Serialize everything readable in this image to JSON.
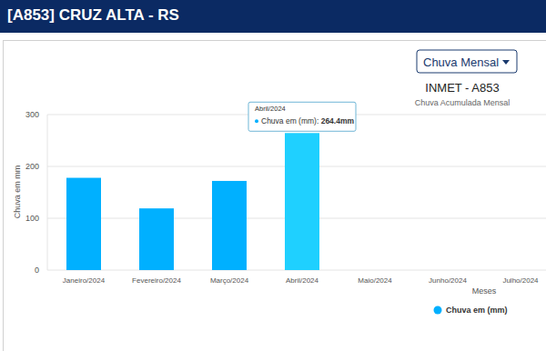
{
  "header": {
    "title": "[A853] CRUZ ALTA - RS"
  },
  "dropdown": {
    "label": "Chuva Mensal"
  },
  "chart_data": {
    "type": "bar",
    "title": "INMET - A853",
    "subtitle": "Chuva Acumulada Mensal",
    "y_label": "Chuva em mm",
    "x_label": "Meses",
    "categories": [
      "Janeiro/2024",
      "Fevereiro/2024",
      "Março/2024",
      "Abril/2024",
      "Maio/2024",
      "Junho/2024",
      "Julho/2024"
    ],
    "series": [
      {
        "name": "Chuva em (mm)",
        "color": "#00b0ff",
        "colors": [
          "#00b0ff",
          "#00b0ff",
          "#00b0ff",
          "#1fd0ff",
          "#00b0ff",
          "#00b0ff",
          "#00b0ff"
        ],
        "values": [
          178,
          119,
          172,
          264.4,
          null,
          null,
          null
        ]
      }
    ],
    "ylim": [
      0,
      300
    ],
    "yticks": [
      0,
      100,
      200,
      300
    ],
    "grid": true,
    "legend": "bottom",
    "tooltip": {
      "title": "Abril/2024",
      "label": "Chuva em (mm):",
      "value_label": "264.4mm"
    }
  }
}
